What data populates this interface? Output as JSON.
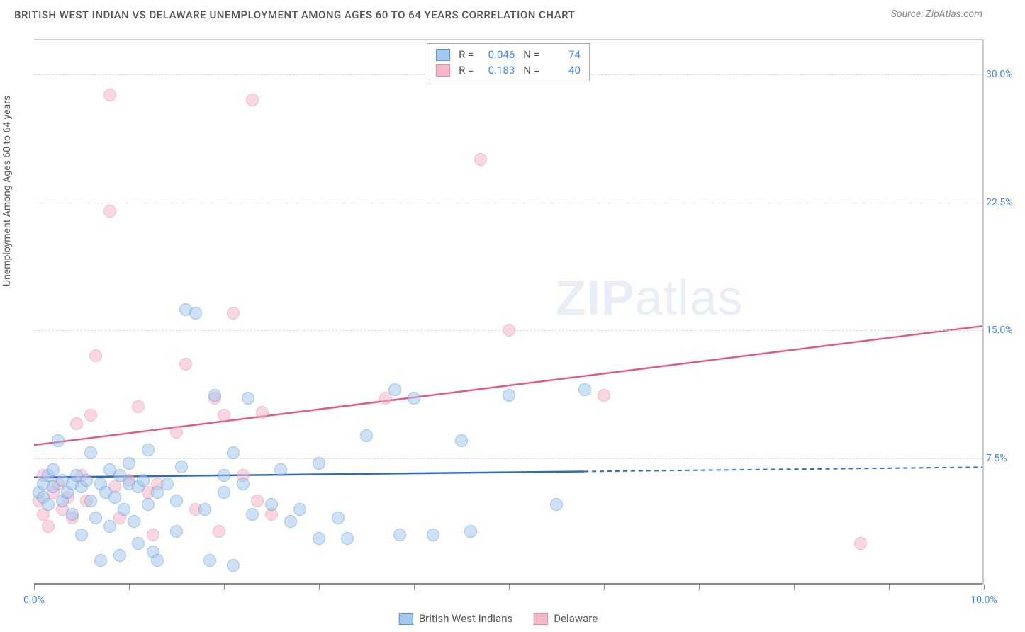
{
  "title": "BRITISH WEST INDIAN VS DELAWARE UNEMPLOYMENT AMONG AGES 60 TO 64 YEARS CORRELATION CHART",
  "source": "Source: ZipAtlas.com",
  "y_axis_label": "Unemployment Among Ages 60 to 64 years",
  "watermark_text_bold": "ZIP",
  "watermark_text_rest": "atlas",
  "chart": {
    "type": "scatter",
    "xlim": [
      0,
      10
    ],
    "ylim": [
      0,
      32
    ],
    "x_ticks": [
      0,
      1,
      2,
      3,
      4,
      5,
      6,
      7,
      8,
      9,
      10
    ],
    "x_tick_labels": {
      "0": "0.0%",
      "10": "10.0%"
    },
    "y_gridlines": [
      7.5,
      15.0,
      22.5,
      30.0
    ],
    "y_tick_labels": [
      "7.5%",
      "15.0%",
      "22.5%",
      "30.0%"
    ],
    "background_color": "#ffffff",
    "grid_color": "#dddddd",
    "axis_color": "#888888",
    "tick_label_color": "#4a86e8",
    "series": [
      {
        "name": "British West Indians",
        "color_fill": "#a4c8f0",
        "color_stroke": "#5a94d6",
        "fill_opacity": 0.55,
        "marker_radius": 9,
        "R": "0.046",
        "N": "74",
        "trend": {
          "x1": 0,
          "y1": 6.3,
          "x2": 10,
          "y2": 6.9,
          "solid_until_x": 5.8,
          "color": "#2e6bc0"
        },
        "points": [
          [
            0.05,
            5.5
          ],
          [
            0.1,
            6.0
          ],
          [
            0.1,
            5.2
          ],
          [
            0.15,
            6.5
          ],
          [
            0.15,
            4.8
          ],
          [
            0.2,
            5.8
          ],
          [
            0.2,
            6.8
          ],
          [
            0.25,
            8.5
          ],
          [
            0.3,
            5.0
          ],
          [
            0.3,
            6.2
          ],
          [
            0.35,
            5.5
          ],
          [
            0.4,
            6.0
          ],
          [
            0.4,
            4.2
          ],
          [
            0.45,
            6.5
          ],
          [
            0.5,
            5.8
          ],
          [
            0.5,
            3.0
          ],
          [
            0.55,
            6.2
          ],
          [
            0.6,
            5.0
          ],
          [
            0.6,
            7.8
          ],
          [
            0.65,
            4.0
          ],
          [
            0.7,
            6.0
          ],
          [
            0.7,
            1.5
          ],
          [
            0.75,
            5.5
          ],
          [
            0.8,
            6.8
          ],
          [
            0.8,
            3.5
          ],
          [
            0.85,
            5.2
          ],
          [
            0.9,
            6.5
          ],
          [
            0.9,
            1.8
          ],
          [
            0.95,
            4.5
          ],
          [
            1.0,
            7.2
          ],
          [
            1.0,
            6.0
          ],
          [
            1.05,
            3.8
          ],
          [
            1.1,
            5.8
          ],
          [
            1.1,
            2.5
          ],
          [
            1.15,
            6.2
          ],
          [
            1.2,
            4.8
          ],
          [
            1.2,
            8.0
          ],
          [
            1.25,
            2.0
          ],
          [
            1.3,
            5.5
          ],
          [
            1.3,
            1.5
          ],
          [
            1.4,
            6.0
          ],
          [
            1.5,
            5.0
          ],
          [
            1.5,
            3.2
          ],
          [
            1.55,
            7.0
          ],
          [
            1.6,
            16.2
          ],
          [
            1.7,
            16.0
          ],
          [
            1.8,
            4.5
          ],
          [
            1.85,
            1.5
          ],
          [
            1.9,
            11.2
          ],
          [
            2.0,
            5.5
          ],
          [
            2.0,
            6.5
          ],
          [
            2.1,
            7.8
          ],
          [
            2.1,
            1.2
          ],
          [
            2.2,
            6.0
          ],
          [
            2.25,
            11.0
          ],
          [
            2.3,
            4.2
          ],
          [
            2.5,
            4.8
          ],
          [
            2.6,
            6.8
          ],
          [
            2.7,
            3.8
          ],
          [
            2.8,
            4.5
          ],
          [
            3.0,
            7.2
          ],
          [
            3.0,
            2.8
          ],
          [
            3.2,
            4.0
          ],
          [
            3.3,
            2.8
          ],
          [
            3.5,
            8.8
          ],
          [
            3.8,
            11.5
          ],
          [
            3.85,
            3.0
          ],
          [
            4.0,
            11.0
          ],
          [
            4.2,
            3.0
          ],
          [
            4.5,
            8.5
          ],
          [
            4.6,
            3.2
          ],
          [
            5.0,
            11.2
          ],
          [
            5.5,
            4.8
          ],
          [
            5.8,
            11.5
          ]
        ]
      },
      {
        "name": "Delaware",
        "color_fill": "#f5b8c8",
        "color_stroke": "#e986a3",
        "fill_opacity": 0.55,
        "marker_radius": 9,
        "R": "0.183",
        "N": "40",
        "trend": {
          "x1": 0,
          "y1": 8.2,
          "x2": 10,
          "y2": 15.2,
          "solid_until_x": 10,
          "color": "#e05a8a"
        },
        "points": [
          [
            0.05,
            5.0
          ],
          [
            0.1,
            6.5
          ],
          [
            0.1,
            4.2
          ],
          [
            0.15,
            3.5
          ],
          [
            0.2,
            5.5
          ],
          [
            0.25,
            6.0
          ],
          [
            0.3,
            4.5
          ],
          [
            0.35,
            5.2
          ],
          [
            0.4,
            4.0
          ],
          [
            0.45,
            9.5
          ],
          [
            0.5,
            6.5
          ],
          [
            0.55,
            5.0
          ],
          [
            0.6,
            10.0
          ],
          [
            0.65,
            13.5
          ],
          [
            0.8,
            28.8
          ],
          [
            0.8,
            22.0
          ],
          [
            0.85,
            5.8
          ],
          [
            0.9,
            4.0
          ],
          [
            1.0,
            6.2
          ],
          [
            1.1,
            10.5
          ],
          [
            1.2,
            5.5
          ],
          [
            1.25,
            3.0
          ],
          [
            1.3,
            6.0
          ],
          [
            1.5,
            9.0
          ],
          [
            1.6,
            13.0
          ],
          [
            1.7,
            4.5
          ],
          [
            1.9,
            11.0
          ],
          [
            1.95,
            3.2
          ],
          [
            2.0,
            10.0
          ],
          [
            2.1,
            16.0
          ],
          [
            2.2,
            6.5
          ],
          [
            2.3,
            28.5
          ],
          [
            2.35,
            5.0
          ],
          [
            2.4,
            10.2
          ],
          [
            2.5,
            4.2
          ],
          [
            3.7,
            11.0
          ],
          [
            4.7,
            25.0
          ],
          [
            5.0,
            15.0
          ],
          [
            6.0,
            11.2
          ],
          [
            8.7,
            2.5
          ]
        ]
      }
    ]
  },
  "stats_legend_labels": {
    "R": "R =",
    "N": "N ="
  },
  "bottom_legend": [
    "British West Indians",
    "Delaware"
  ]
}
